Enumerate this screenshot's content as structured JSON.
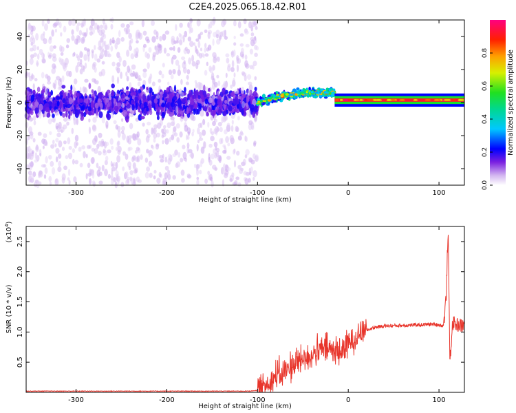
{
  "title": "C2E4.2025.065.18.42.R01",
  "chart_data": [
    {
      "type": "heatmap",
      "xlabel": "Height of straight line (km)",
      "ylabel": "Frequency (Hz)",
      "xlim": [
        -355,
        128
      ],
      "ylim": [
        -50,
        50
      ],
      "xticks": [
        -300,
        -200,
        -100,
        0,
        100
      ],
      "yticks": [
        -40,
        -20,
        0,
        20,
        40
      ],
      "xtick_labels": [
        "-300",
        "-200",
        "-100",
        "0",
        "100"
      ],
      "ytick_labels": [
        "-40",
        "-20",
        "0",
        "20",
        "40"
      ],
      "colorbar": {
        "label": "Normalized spectral amplitude",
        "range": [
          0,
          1
        ],
        "ticks": [
          0.0,
          0.2,
          0.4,
          0.6,
          0.8
        ],
        "tick_labels": [
          "0.0",
          "0.2",
          "0.4",
          "0.6",
          "0.8"
        ]
      },
      "regions": [
        {
          "x_range": [
            -355,
            -100
          ],
          "frequency_center_hz": 0,
          "core_halfwidth_hz": 10,
          "scatter_halfwidth_hz": 50,
          "amplitude_range": [
            0.0,
            0.2
          ]
        },
        {
          "x_range": [
            -100,
            -15
          ],
          "frequency_center_hz": [
            0,
            6
          ],
          "amplitude_range": [
            0.3,
            0.85
          ]
        },
        {
          "x_range": [
            -15,
            128
          ],
          "frequency_center_hz": 1.5,
          "amplitude_range": [
            0.85,
            1.0
          ]
        }
      ]
    },
    {
      "type": "line",
      "xlabel": "Height of straight line (km)",
      "ylabel": "SNR (10 * v/v)",
      "y_multiplier": "(x10",
      "y_multiplier_exp": "4",
      "y_multiplier_close": ")",
      "xlim": [
        -355,
        128
      ],
      "ylim": [
        0,
        2.75
      ],
      "xticks": [
        -300,
        -200,
        -100,
        0,
        100
      ],
      "yticks": [
        0.5,
        1.0,
        1.5,
        2.0,
        2.5
      ],
      "xtick_labels": [
        "-300",
        "-200",
        "-100",
        "0",
        "100"
      ],
      "ytick_labels": [
        "0.5",
        "1.0",
        "1.5",
        "2.0",
        "2.5"
      ],
      "series": [
        {
          "color": "#e8352b",
          "x": [
            -355,
            -300,
            -200,
            -150,
            -110,
            -100,
            -90,
            -80,
            -70,
            -60,
            -50,
            -40,
            -30,
            -20,
            -10,
            0,
            10,
            20,
            30,
            40,
            60,
            80,
            90,
            100,
            105,
            108,
            110,
            112,
            115,
            120,
            128
          ],
          "y": [
            0.02,
            0.02,
            0.02,
            0.02,
            0.02,
            0.03,
            0.15,
            0.25,
            0.35,
            0.45,
            0.55,
            0.62,
            0.7,
            0.72,
            0.65,
            0.8,
            0.95,
            1.03,
            1.08,
            1.1,
            1.11,
            1.12,
            1.13,
            1.12,
            1.1,
            1.6,
            2.75,
            0.5,
            1.15,
            1.12,
            1.1
          ]
        }
      ]
    }
  ]
}
